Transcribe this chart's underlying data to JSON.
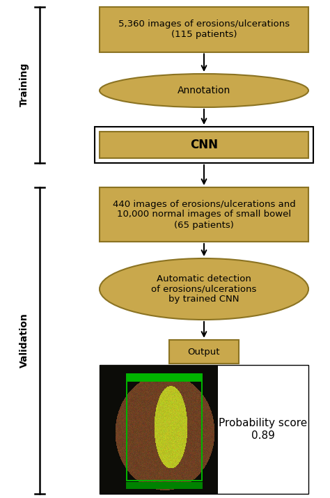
{
  "gold_fill": "#C9A84C",
  "gold_edge": "#8B7322",
  "white_fill": "#FFFFFF",
  "black": "#000000",
  "fig_bg": "#FFFFFF",
  "box1_text": "5,360 images of erosions/ulcerations\n(115 patients)",
  "ellipse1_text": "Annotation",
  "cnn_text": "CNN",
  "box2_text": "440 images of erosions/ulcerations and\n10,000 normal images of small bowel\n(65 patients)",
  "ellipse2_text": "Automatic detection\nof erosions/ulcerations\nby trained CNN",
  "output_text": "Output",
  "prob_text": "Probability score\n0.89",
  "training_label": "Training",
  "validation_label": "Validation",
  "figsize": [
    4.74,
    7.15
  ],
  "dpi": 100
}
